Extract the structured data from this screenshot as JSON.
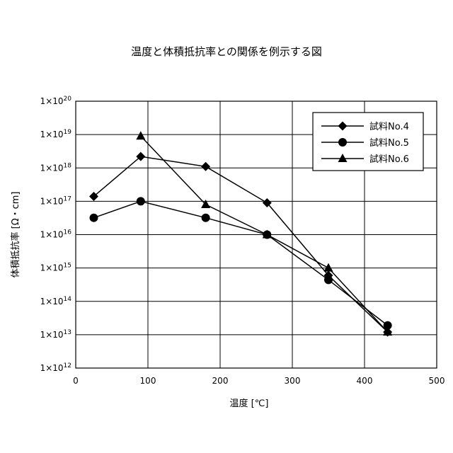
{
  "chart_data": {
    "type": "line",
    "title": "温度と体積抵抗率との関係を例示する図",
    "xlabel": "温度 [℃]",
    "ylabel": "体積抵抗率 [Ω・cm]",
    "xlim": [
      0,
      500
    ],
    "ylim_log10": [
      12,
      20
    ],
    "y_scale": "log",
    "x_ticks": [
      "0",
      "100",
      "200",
      "300",
      "400",
      "500"
    ],
    "y_tick_prefix": "1×10",
    "y_tick_exponents": [
      "12",
      "13",
      "14",
      "15",
      "16",
      "17",
      "18",
      "19",
      "20"
    ],
    "grid": true,
    "legend_position": "top-right",
    "series": [
      {
        "name": "試料No.4",
        "marker": "diamond",
        "x": [
          25,
          90,
          180,
          265,
          350,
          432
        ],
        "y": [
          1.4e+17,
          2.2e+18,
          1.1e+18,
          9e+16,
          600000000000000.0,
          12000000000000.0
        ]
      },
      {
        "name": "試料No.5",
        "marker": "circle",
        "x": [
          25,
          90,
          180,
          265,
          350,
          432
        ],
        "y": [
          3.2e+16,
          1e+17,
          3.2e+16,
          1e+16,
          440000000000000.0,
          19000000000000.0
        ]
      },
      {
        "name": "試料No.6",
        "marker": "triangle",
        "x": [
          90,
          180,
          265,
          350,
          432
        ],
        "y": [
          9e+18,
          8e+16,
          1e+16,
          1000000000000000.0,
          12000000000000.0
        ]
      }
    ]
  }
}
